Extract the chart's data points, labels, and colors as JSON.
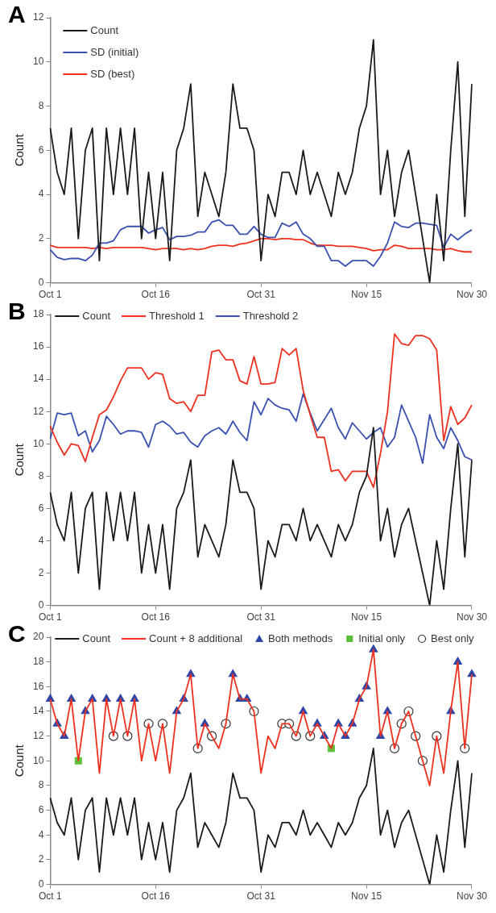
{
  "chart_data": [
    {
      "type": "line",
      "title": "A",
      "ylabel": "Count",
      "legend": "top left",
      "ylim": [
        0,
        12
      ],
      "yticks": [
        0,
        2,
        4,
        6,
        8,
        10,
        12
      ],
      "categories": [
        "Oct 1",
        null,
        null,
        null,
        null,
        null,
        null,
        null,
        null,
        null,
        null,
        null,
        null,
        null,
        null,
        "Oct 16",
        null,
        null,
        null,
        null,
        null,
        null,
        null,
        null,
        null,
        null,
        null,
        null,
        null,
        null,
        "Oct 31",
        null,
        null,
        null,
        null,
        null,
        null,
        null,
        null,
        null,
        null,
        null,
        null,
        null,
        null,
        "Nov 15",
        null,
        null,
        null,
        null,
        null,
        null,
        null,
        null,
        null,
        null,
        null,
        null,
        null,
        null,
        "Nov 30"
      ],
      "series": [
        {
          "name": "Count",
          "color": "#1a1a1a",
          "marker": "none",
          "values": [
            7,
            5,
            4,
            7,
            2,
            6,
            7,
            1,
            7,
            4,
            7,
            4,
            7,
            2,
            5,
            2,
            5,
            1,
            6,
            7,
            9,
            3,
            5,
            4,
            3,
            5,
            9,
            7,
            7,
            6,
            1,
            4,
            3,
            5,
            5,
            4,
            6,
            4,
            5,
            4,
            3,
            5,
            4,
            5,
            7,
            8,
            11,
            4,
            6,
            3,
            5,
            6,
            4,
            2,
            0,
            4,
            1,
            6,
            10,
            3,
            9
          ]
        },
        {
          "name": "SD (initial)",
          "color": "#3a50b0",
          "marker": "none",
          "values": [
            1.5,
            1.15,
            1.05,
            1.1,
            1.1,
            1.0,
            1.25,
            1.8,
            1.8,
            1.9,
            2.4,
            2.55,
            2.55,
            2.55,
            2.25,
            2.4,
            2.5,
            1.95,
            2.1,
            2.1,
            2.15,
            2.3,
            2.3,
            2.75,
            2.85,
            2.6,
            2.6,
            2.2,
            2.2,
            2.55,
            2.2,
            2.05,
            2.05,
            2.7,
            2.55,
            2.75,
            2.2,
            2.0,
            1.65,
            1.65,
            1.0,
            1.0,
            0.75,
            1.0,
            1.0,
            1.0,
            0.75,
            1.2,
            1.8,
            2.75,
            2.55,
            2.5,
            2.7,
            2.7,
            2.65,
            2.6,
            1.6,
            2.2,
            1.95,
            2.2,
            2.4
          ]
        },
        {
          "name": "SD (best)",
          "color": "#f0301e",
          "marker": "none",
          "values": [
            1.7,
            1.6,
            1.6,
            1.6,
            1.6,
            1.6,
            1.55,
            1.6,
            1.55,
            1.6,
            1.6,
            1.6,
            1.6,
            1.6,
            1.55,
            1.5,
            1.55,
            1.55,
            1.55,
            1.5,
            1.55,
            1.5,
            1.55,
            1.65,
            1.7,
            1.7,
            1.65,
            1.75,
            1.8,
            1.9,
            2.0,
            2.0,
            1.95,
            2.0,
            2.0,
            1.95,
            1.95,
            1.8,
            1.7,
            1.7,
            1.7,
            1.65,
            1.65,
            1.65,
            1.6,
            1.55,
            1.45,
            1.5,
            1.5,
            1.7,
            1.65,
            1.55,
            1.55,
            1.55,
            1.55,
            1.5,
            1.5,
            1.55,
            1.45,
            1.4,
            1.4
          ]
        }
      ]
    },
    {
      "type": "line",
      "title": "B",
      "ylabel": "Count",
      "legend": "top",
      "ylim": [
        0,
        18
      ],
      "yticks": [
        0,
        2,
        4,
        6,
        8,
        10,
        12,
        14,
        16,
        18
      ],
      "categories": [
        "Oct 1",
        null,
        null,
        null,
        null,
        null,
        null,
        null,
        null,
        null,
        null,
        null,
        null,
        null,
        null,
        "Oct 16",
        null,
        null,
        null,
        null,
        null,
        null,
        null,
        null,
        null,
        null,
        null,
        null,
        null,
        null,
        "Oct 31",
        null,
        null,
        null,
        null,
        null,
        null,
        null,
        null,
        null,
        null,
        null,
        null,
        null,
        null,
        "Nov 15",
        null,
        null,
        null,
        null,
        null,
        null,
        null,
        null,
        null,
        null,
        null,
        null,
        null,
        null,
        "Nov 30"
      ],
      "series": [
        {
          "name": "Count",
          "color": "#1a1a1a",
          "marker": "none",
          "values": [
            7,
            5,
            4,
            7,
            2,
            6,
            7,
            1,
            7,
            4,
            7,
            4,
            7,
            2,
            5,
            2,
            5,
            1,
            6,
            7,
            9,
            3,
            5,
            4,
            3,
            5,
            9,
            7,
            7,
            6,
            1,
            4,
            3,
            5,
            5,
            4,
            6,
            4,
            5,
            4,
            3,
            5,
            4,
            5,
            7,
            8,
            11,
            4,
            6,
            3,
            5,
            6,
            4,
            2,
            0,
            4,
            1,
            6,
            10,
            3,
            9
          ]
        },
        {
          "name": "Threshold 1",
          "color": "#f0301e",
          "marker": "none",
          "values": [
            11.1,
            10.1,
            9.3,
            10.0,
            9.9,
            8.9,
            10.4,
            11.8,
            12.1,
            12.9,
            13.9,
            14.7,
            14.7,
            14.7,
            14.0,
            14.4,
            14.3,
            12.8,
            12.5,
            12.6,
            12.0,
            13.0,
            13.0,
            15.7,
            15.8,
            15.2,
            15.2,
            13.9,
            13.7,
            15.4,
            13.7,
            13.7,
            13.8,
            15.9,
            15.5,
            15.9,
            13.3,
            11.8,
            10.4,
            10.4,
            8.3,
            8.4,
            7.7,
            8.3,
            8.3,
            8.3,
            7.3,
            9.4,
            12.0,
            16.8,
            16.2,
            16.1,
            16.7,
            16.7,
            16.5,
            15.8,
            10.2,
            12.3,
            11.2,
            11.6,
            12.4
          ]
        },
        {
          "name": "Threshold 2",
          "color": "#3a50b0",
          "marker": "none",
          "values": [
            10.3,
            11.9,
            11.8,
            11.9,
            10.5,
            10.8,
            9.5,
            10.2,
            11.7,
            11.2,
            10.6,
            10.8,
            10.8,
            10.7,
            9.8,
            11.2,
            11.4,
            11.1,
            10.6,
            10.7,
            10.1,
            9.8,
            10.5,
            10.8,
            11.0,
            10.6,
            11.4,
            10.7,
            10.2,
            12.6,
            11.8,
            12.8,
            12.4,
            12.2,
            12.1,
            11.4,
            13.1,
            11.9,
            10.8,
            11.5,
            12.2,
            11.0,
            10.3,
            11.3,
            10.8,
            10.3,
            10.7,
            11.0,
            9.8,
            10.4,
            12.4,
            11.4,
            10.4,
            8.8,
            11.8,
            10.4,
            9.7,
            11.0,
            10.2,
            9.2,
            9.0
          ]
        }
      ]
    },
    {
      "type": "line",
      "title": "C",
      "ylabel": "Count",
      "legend": "top",
      "ylim": [
        0,
        20
      ],
      "yticks": [
        0,
        2,
        4,
        6,
        8,
        10,
        12,
        14,
        16,
        18,
        20
      ],
      "categories": [
        "Oct 1",
        null,
        null,
        null,
        null,
        null,
        null,
        null,
        null,
        null,
        null,
        null,
        null,
        null,
        null,
        "Oct 16",
        null,
        null,
        null,
        null,
        null,
        null,
        null,
        null,
        null,
        null,
        null,
        null,
        null,
        null,
        "Oct 31",
        null,
        null,
        null,
        null,
        null,
        null,
        null,
        null,
        null,
        null,
        null,
        null,
        null,
        null,
        "Nov 15",
        null,
        null,
        null,
        null,
        null,
        null,
        null,
        null,
        null,
        null,
        null,
        null,
        null,
        null,
        "Nov 30"
      ],
      "series": [
        {
          "name": "Count",
          "color": "#1a1a1a",
          "marker": "none",
          "values": [
            7,
            5,
            4,
            7,
            2,
            6,
            7,
            1,
            7,
            4,
            7,
            4,
            7,
            2,
            5,
            2,
            5,
            1,
            6,
            7,
            9,
            3,
            5,
            4,
            3,
            5,
            9,
            7,
            7,
            6,
            1,
            4,
            3,
            5,
            5,
            4,
            6,
            4,
            5,
            4,
            3,
            5,
            4,
            5,
            7,
            8,
            11,
            4,
            6,
            3,
            5,
            6,
            4,
            2,
            0,
            4,
            1,
            6,
            10,
            3,
            9
          ]
        },
        {
          "name": "Count + 8 additional",
          "color": "#f0301e",
          "marker": "none",
          "values": [
            15,
            13,
            12,
            15,
            10,
            14,
            15,
            9,
            15,
            12,
            15,
            12,
            15,
            10,
            13,
            10,
            13,
            9,
            14,
            15,
            17,
            11,
            13,
            12,
            11,
            13,
            17,
            15,
            15,
            14,
            9,
            12,
            11,
            13,
            13,
            12,
            14,
            12,
            13,
            12,
            11,
            13,
            12,
            13,
            15,
            16,
            19,
            12,
            14,
            11,
            13,
            14,
            12,
            10,
            8,
            12,
            9,
            14,
            18,
            11,
            17
          ]
        },
        {
          "name": "Both methods",
          "type": "scatter",
          "color": "#2e45a8",
          "marker": "triangle",
          "values": [
            15,
            13,
            12,
            15,
            null,
            14,
            15,
            null,
            15,
            null,
            15,
            null,
            15,
            null,
            null,
            null,
            null,
            null,
            14,
            15,
            17,
            null,
            13,
            null,
            null,
            null,
            17,
            15,
            15,
            null,
            null,
            null,
            null,
            null,
            null,
            null,
            14,
            null,
            13,
            12,
            null,
            13,
            12,
            13,
            15,
            16,
            19,
            12,
            14,
            null,
            null,
            null,
            null,
            null,
            null,
            null,
            null,
            14,
            18,
            null,
            17
          ]
        },
        {
          "name": "Initial only",
          "type": "scatter",
          "color": "#5cbf3a",
          "marker": "square",
          "values": [
            null,
            null,
            null,
            null,
            10,
            null,
            null,
            null,
            null,
            null,
            null,
            null,
            null,
            null,
            null,
            null,
            null,
            null,
            null,
            null,
            null,
            null,
            null,
            null,
            null,
            null,
            null,
            null,
            null,
            null,
            null,
            null,
            null,
            null,
            null,
            null,
            null,
            null,
            null,
            null,
            11,
            null,
            null,
            null,
            null,
            null,
            null,
            null,
            null,
            null,
            null,
            null,
            null,
            null,
            null,
            null,
            null,
            null,
            null,
            null,
            null
          ]
        },
        {
          "name": "Best only",
          "type": "scatter",
          "color": "#333333",
          "marker": "circle",
          "values": [
            null,
            null,
            null,
            null,
            null,
            null,
            null,
            null,
            null,
            12,
            null,
            12,
            null,
            null,
            13,
            null,
            13,
            null,
            null,
            null,
            null,
            11,
            null,
            12,
            null,
            13,
            null,
            null,
            null,
            14,
            null,
            null,
            null,
            13,
            13,
            12,
            null,
            12,
            null,
            null,
            null,
            null,
            null,
            null,
            null,
            null,
            null,
            null,
            null,
            11,
            13,
            14,
            12,
            10,
            null,
            12,
            null,
            null,
            null,
            11,
            null
          ]
        }
      ]
    }
  ]
}
